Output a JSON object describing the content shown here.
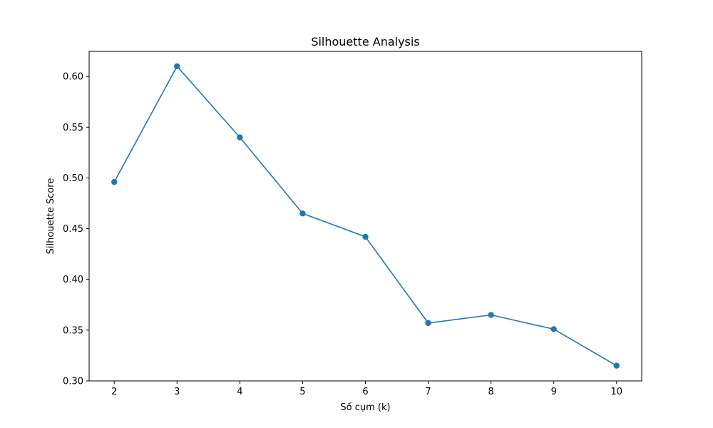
{
  "chart_data": {
    "type": "line",
    "title": "Silhouette Analysis",
    "xlabel": "Số cụm (k)",
    "ylabel": "Silhouette Score",
    "x": [
      2,
      3,
      4,
      5,
      6,
      7,
      8,
      9,
      10
    ],
    "series": [
      {
        "values": [
          0.496,
          0.61,
          0.54,
          0.465,
          0.442,
          0.357,
          0.365,
          0.351,
          0.315
        ],
        "color": "#1f77b4",
        "marker": "circle"
      }
    ],
    "xticks": [
      "2",
      "3",
      "4",
      "5",
      "6",
      "7",
      "8",
      "9",
      "10"
    ],
    "yticks": [
      "0.30",
      "0.35",
      "0.40",
      "0.45",
      "0.50",
      "0.55",
      "0.60"
    ],
    "xlim": [
      1.6,
      10.4
    ],
    "ylim": [
      0.3,
      0.6247
    ],
    "grid": false,
    "legend": "none"
  }
}
